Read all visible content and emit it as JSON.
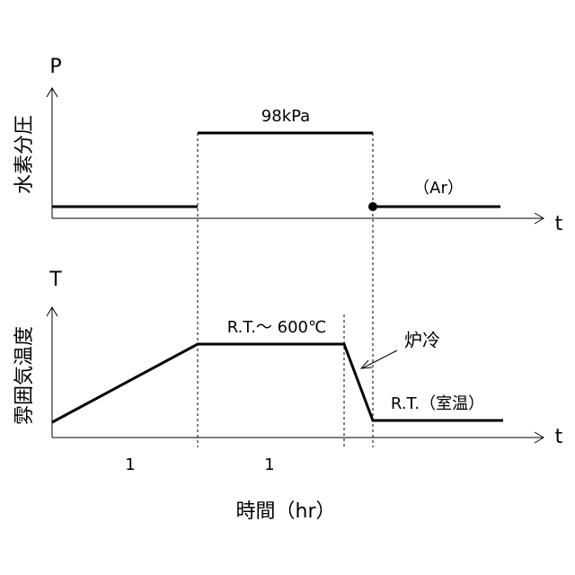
{
  "top_panel": {
    "axis_label_y": "P",
    "axis_title_y": "水素分圧",
    "axis_label_x": "t",
    "pressure_label": "98kPa",
    "gas_label": "（Ar）"
  },
  "bottom_panel": {
    "axis_label_y": "T",
    "axis_title_y": "雰囲気温度",
    "axis_label_x": "t",
    "heating_label": "R.T.～ 600℃",
    "cooling_label": "炉冷",
    "final_label": "R.T.（室温）",
    "interval_labels": [
      "1",
      "1"
    ]
  },
  "x_axis_title": "時間（hr）"
}
